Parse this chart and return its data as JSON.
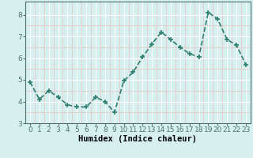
{
  "x": [
    0,
    1,
    2,
    3,
    4,
    5,
    6,
    7,
    8,
    9,
    10,
    11,
    12,
    13,
    14,
    15,
    16,
    17,
    18,
    19,
    20,
    21,
    22,
    23
  ],
  "y": [
    4.9,
    4.1,
    4.5,
    4.2,
    3.85,
    3.75,
    3.75,
    4.2,
    4.0,
    3.5,
    4.95,
    5.35,
    6.05,
    6.65,
    7.2,
    6.85,
    6.5,
    6.2,
    6.05,
    8.1,
    7.8,
    6.85,
    6.6,
    5.7
  ],
  "line_color": "#2e7f6e",
  "marker": "+",
  "marker_size": 4,
  "marker_linewidth": 1.2,
  "line_width": 1.2,
  "xlabel": "Humidex (Indice chaleur)",
  "ylim": [
    3.0,
    8.6
  ],
  "xlim": [
    -0.5,
    23.5
  ],
  "yticks": [
    3,
    4,
    5,
    6,
    7,
    8
  ],
  "xticks": [
    0,
    1,
    2,
    3,
    4,
    5,
    6,
    7,
    8,
    9,
    10,
    11,
    12,
    13,
    14,
    15,
    16,
    17,
    18,
    19,
    20,
    21,
    22,
    23
  ],
  "bg_color": "#d6efef",
  "grid_color_major": "#ffffff",
  "grid_color_minor": "#e8c8c8",
  "xlabel_fontsize": 7.5,
  "tick_fontsize": 6.5,
  "axis_color": "#507070",
  "spine_color": "#507070"
}
